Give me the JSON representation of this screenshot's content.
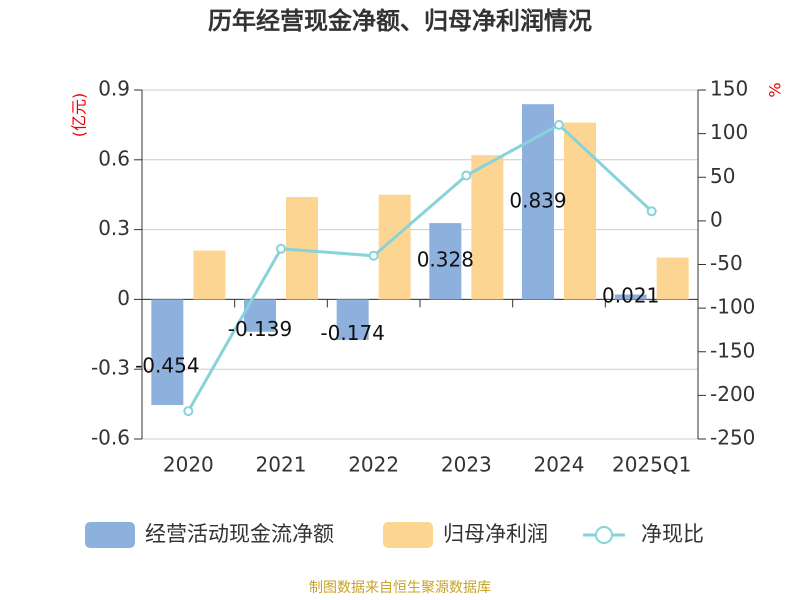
{
  "chart_data": {
    "type": "combo",
    "title": "历年经营现金净额、归母净利润情况",
    "categories": [
      "2020",
      "2021",
      "2022",
      "2023",
      "2024",
      "2025Q1"
    ],
    "series": [
      {
        "name": "经营活动现金流净额",
        "color": "#8eb0dd",
        "type": "bar",
        "values": [
          -0.454,
          -0.139,
          -0.174,
          0.328,
          0.839,
          0.021
        ],
        "show_labels": true
      },
      {
        "name": "归母净利润",
        "color": "#fdd593",
        "type": "bar",
        "values": [
          0.21,
          0.44,
          0.45,
          0.62,
          0.76,
          0.18
        ]
      },
      {
        "name": "净现比",
        "color": "#87d3d9",
        "type": "line",
        "axis": "y2",
        "values": [
          -218,
          -32,
          -40,
          52,
          110,
          11
        ]
      }
    ],
    "y_label": "(亿元)",
    "y2_label": "%",
    "ylim": [
      -0.6,
      0.9
    ],
    "yticks": [
      -0.6,
      -0.3,
      0,
      0.3,
      0.6,
      0.9
    ],
    "y2lim": [
      -250,
      150
    ],
    "y2ticks": [
      -250,
      -200,
      -150,
      -100,
      -50,
      0,
      50,
      100,
      150
    ],
    "grid": true,
    "legend": "bottom",
    "source": "制图数据来自恒生聚源数据库"
  }
}
